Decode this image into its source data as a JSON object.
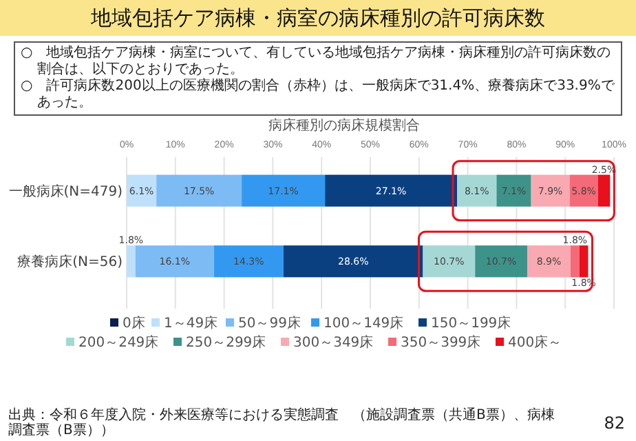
{
  "chart_data": {
    "type": "bar",
    "orientation": "horizontal",
    "stacked": true,
    "title": "地域包括ケア病棟・病室の病床種別の許可病床数",
    "subtitle": "病床種別の病床規模割合",
    "categories": [
      "一般病床(N=479)",
      "療養病床(N=56)"
    ],
    "series": [
      {
        "name": "0床",
        "color": "#0a1e50",
        "values": [
          0,
          0
        ],
        "value_labels": [
          null,
          null
        ]
      },
      {
        "name": "1～49床",
        "color": "#bfe0fb",
        "values": [
          6.1,
          1.8
        ],
        "value_labels": [
          "6.1%",
          "1.8%"
        ]
      },
      {
        "name": "50～99床",
        "color": "#7dbbf5",
        "values": [
          17.5,
          16.1
        ],
        "value_labels": [
          "17.5%",
          "16.1%"
        ]
      },
      {
        "name": "100～149床",
        "color": "#3399f0",
        "values": [
          17.1,
          14.3
        ],
        "value_labels": [
          "17.1%",
          "14.3%"
        ]
      },
      {
        "name": "150～199床",
        "color": "#0a4080",
        "values": [
          27.1,
          28.6
        ],
        "value_labels": [
          "27.1%",
          "28.6%"
        ]
      },
      {
        "name": "200～249床",
        "color": "#a5d8d5",
        "values": [
          8.1,
          10.7
        ],
        "value_labels": [
          "8.1%",
          "10.7%"
        ]
      },
      {
        "name": "250～299床",
        "color": "#3d938a",
        "values": [
          7.1,
          10.7
        ],
        "value_labels": [
          "7.1%",
          "10.7%"
        ]
      },
      {
        "name": "300～349床",
        "color": "#f9a9b1",
        "values": [
          7.9,
          8.9
        ],
        "value_labels": [
          "7.9%",
          "8.9%"
        ]
      },
      {
        "name": "350～399床",
        "color": "#f46a78",
        "values": [
          5.8,
          1.8
        ],
        "value_labels": [
          "5.8%",
          "1.8%"
        ]
      },
      {
        "name": "400床～",
        "color": "#e8101c",
        "values": [
          2.5,
          1.8
        ],
        "value_labels": [
          "2.5%",
          "1.8%"
        ]
      }
    ],
    "xlim": [
      0,
      100
    ],
    "xticks": [
      {
        "value": 0,
        "label": "0%"
      },
      {
        "value": 10,
        "label": "10%"
      },
      {
        "value": 20,
        "label": "20%"
      },
      {
        "value": 30,
        "label": "30%"
      },
      {
        "value": 40,
        "label": "40%"
      },
      {
        "value": 50,
        "label": "50%"
      },
      {
        "value": 60,
        "label": "60%"
      },
      {
        "value": 70,
        "label": "70%"
      },
      {
        "value": 80,
        "label": "80%"
      },
      {
        "value": 90,
        "label": "90%"
      },
      {
        "value": 100,
        "label": "100%"
      }
    ],
    "grid": "x",
    "legend": "bottom",
    "annotations": [
      "○　地域包括ケア病棟・病室について、有している地域包括ケア病棟・病床種別の許可病床数の割合は、以下のとおりであった。",
      "○　許可病床数200以上の医療機関の割合（赤枠）は、一般病床で31.4%、療養病床で33.9%であった。",
      "出典：令和６年度入院・外来医療等における実態調査　（施設調査票（共通B票）、病棟調査票（B票））",
      "82"
    ]
  }
}
